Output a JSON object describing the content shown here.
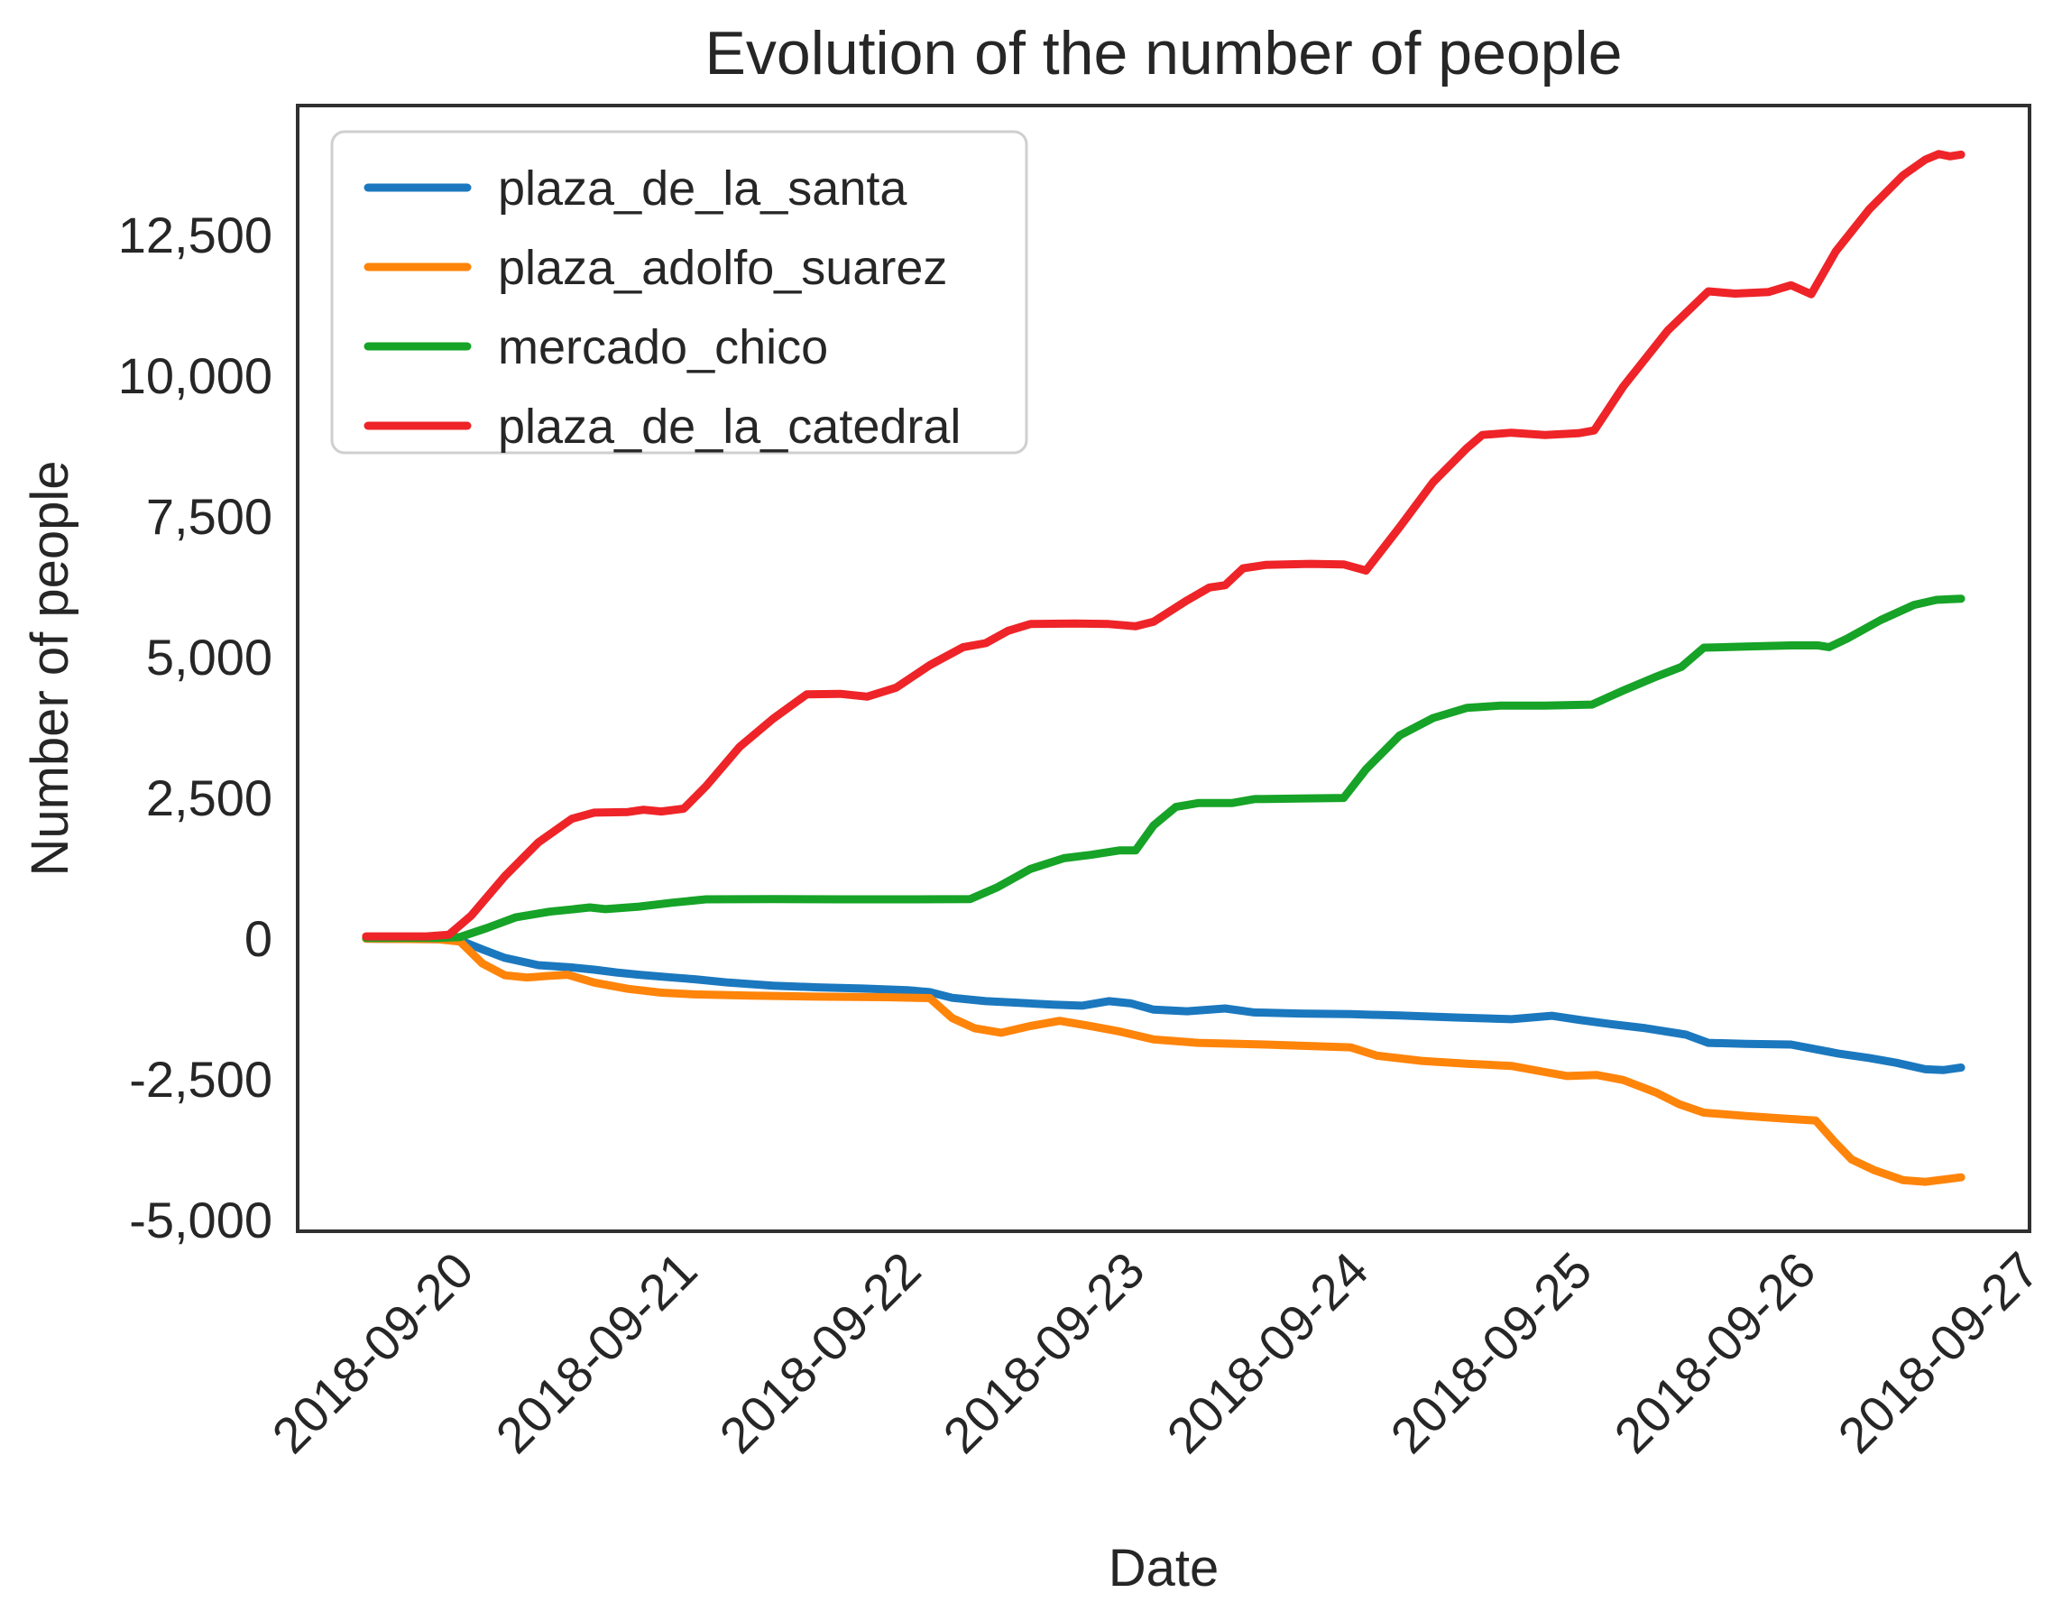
{
  "figure": {
    "title": "Evolution of the number of people",
    "xlabel": "Date",
    "ylabel": "Number of people"
  },
  "chart_data": {
    "type": "line",
    "title": "Evolution of the number of people",
    "xlabel": "Date",
    "ylabel": "Number of people",
    "grid": false,
    "legend_position": "upper left",
    "x_axis_unit": "days relative to 2018-09-20",
    "xlim_days": [
      -0.726,
      7.016
    ],
    "ylim": [
      -5208,
      14792
    ],
    "x_tick_days": [
      0,
      1,
      2,
      3,
      4,
      5,
      6,
      7
    ],
    "x_tick_labels": [
      "2018-09-20",
      "2018-09-21",
      "2018-09-22",
      "2018-09-23",
      "2018-09-24",
      "2018-09-25",
      "2018-09-26",
      "2018-09-27"
    ],
    "y_ticks": [
      -5000,
      -2500,
      0,
      2500,
      5000,
      7500,
      10000,
      12500
    ],
    "y_tick_labels": [
      "-5,000",
      "-2,500",
      "0",
      "2,500",
      "5,000",
      "7,500",
      "10,000",
      "12,500"
    ],
    "series": [
      {
        "name": "plaza_de_la_santa",
        "color": "#1b78be",
        "points": [
          [
            -0.42,
            -10
          ],
          [
            -0.1,
            -20
          ],
          [
            0.0,
            -40
          ],
          [
            0.1,
            -200
          ],
          [
            0.2,
            -350
          ],
          [
            0.35,
            -480
          ],
          [
            0.5,
            -520
          ],
          [
            0.6,
            -560
          ],
          [
            0.7,
            -610
          ],
          [
            0.8,
            -650
          ],
          [
            0.95,
            -700
          ],
          [
            1.05,
            -730
          ],
          [
            1.2,
            -790
          ],
          [
            1.4,
            -845
          ],
          [
            1.6,
            -875
          ],
          [
            1.8,
            -895
          ],
          [
            2.0,
            -925
          ],
          [
            2.1,
            -960
          ],
          [
            2.2,
            -1060
          ],
          [
            2.35,
            -1120
          ],
          [
            2.5,
            -1150
          ],
          [
            2.65,
            -1180
          ],
          [
            2.78,
            -1200
          ],
          [
            2.9,
            -1120
          ],
          [
            3.0,
            -1160
          ],
          [
            3.1,
            -1270
          ],
          [
            3.25,
            -1300
          ],
          [
            3.42,
            -1250
          ],
          [
            3.55,
            -1320
          ],
          [
            3.75,
            -1340
          ],
          [
            3.98,
            -1350
          ],
          [
            4.2,
            -1375
          ],
          [
            4.45,
            -1410
          ],
          [
            4.7,
            -1440
          ],
          [
            4.88,
            -1380
          ],
          [
            5.0,
            -1450
          ],
          [
            5.15,
            -1530
          ],
          [
            5.3,
            -1600
          ],
          [
            5.48,
            -1714
          ],
          [
            5.58,
            -1860
          ],
          [
            5.75,
            -1880
          ],
          [
            5.95,
            -1890
          ],
          [
            6.16,
            -2050
          ],
          [
            6.3,
            -2130
          ],
          [
            6.42,
            -2215
          ],
          [
            6.55,
            -2330
          ],
          [
            6.63,
            -2345
          ],
          [
            6.71,
            -2300
          ]
        ]
      },
      {
        "name": "plaza_adolfo_suarez",
        "color": "#ff840a",
        "points": [
          [
            -0.42,
            -10
          ],
          [
            -0.1,
            -20
          ],
          [
            0.0,
            -60
          ],
          [
            0.1,
            -450
          ],
          [
            0.2,
            -660
          ],
          [
            0.3,
            -700
          ],
          [
            0.4,
            -670
          ],
          [
            0.48,
            -650
          ],
          [
            0.6,
            -790
          ],
          [
            0.75,
            -900
          ],
          [
            0.9,
            -970
          ],
          [
            1.05,
            -1000
          ],
          [
            1.3,
            -1020
          ],
          [
            1.6,
            -1040
          ],
          [
            1.9,
            -1050
          ],
          [
            2.1,
            -1065
          ],
          [
            2.2,
            -1420
          ],
          [
            2.3,
            -1600
          ],
          [
            2.42,
            -1680
          ],
          [
            2.55,
            -1560
          ],
          [
            2.68,
            -1470
          ],
          [
            2.8,
            -1550
          ],
          [
            2.95,
            -1660
          ],
          [
            3.1,
            -1800
          ],
          [
            3.3,
            -1860
          ],
          [
            3.6,
            -1890
          ],
          [
            3.98,
            -1940
          ],
          [
            4.1,
            -2090
          ],
          [
            4.3,
            -2180
          ],
          [
            4.5,
            -2230
          ],
          [
            4.7,
            -2270
          ],
          [
            4.85,
            -2380
          ],
          [
            4.95,
            -2450
          ],
          [
            5.08,
            -2430
          ],
          [
            5.2,
            -2520
          ],
          [
            5.35,
            -2750
          ],
          [
            5.45,
            -2950
          ],
          [
            5.56,
            -3100
          ],
          [
            5.75,
            -3160
          ],
          [
            5.9,
            -3200
          ],
          [
            6.06,
            -3240
          ],
          [
            6.14,
            -3600
          ],
          [
            6.22,
            -3930
          ],
          [
            6.32,
            -4120
          ],
          [
            6.45,
            -4300
          ],
          [
            6.55,
            -4330
          ],
          [
            6.63,
            -4290
          ],
          [
            6.71,
            -4250
          ]
        ]
      },
      {
        "name": "mercado_chico",
        "color": "#16a327",
        "points": [
          [
            -0.42,
            5
          ],
          [
            -0.1,
            5
          ],
          [
            0.0,
            20
          ],
          [
            0.12,
            180
          ],
          [
            0.25,
            370
          ],
          [
            0.4,
            470
          ],
          [
            0.5,
            510
          ],
          [
            0.58,
            545
          ],
          [
            0.65,
            515
          ],
          [
            0.8,
            560
          ],
          [
            0.95,
            630
          ],
          [
            1.1,
            690
          ],
          [
            1.4,
            695
          ],
          [
            1.7,
            690
          ],
          [
            2.0,
            690
          ],
          [
            2.28,
            695
          ],
          [
            2.4,
            900
          ],
          [
            2.55,
            1230
          ],
          [
            2.7,
            1420
          ],
          [
            2.82,
            1480
          ],
          [
            2.95,
            1560
          ],
          [
            3.02,
            1560
          ],
          [
            3.1,
            2000
          ],
          [
            3.2,
            2330
          ],
          [
            3.3,
            2400
          ],
          [
            3.45,
            2400
          ],
          [
            3.55,
            2470
          ],
          [
            3.75,
            2480
          ],
          [
            3.95,
            2490
          ],
          [
            4.05,
            3000
          ],
          [
            4.2,
            3600
          ],
          [
            4.35,
            3910
          ],
          [
            4.5,
            4090
          ],
          [
            4.65,
            4130
          ],
          [
            4.85,
            4130
          ],
          [
            5.06,
            4150
          ],
          [
            5.2,
            4400
          ],
          [
            5.35,
            4650
          ],
          [
            5.46,
            4820
          ],
          [
            5.56,
            5160
          ],
          [
            5.75,
            5180
          ],
          [
            5.95,
            5200
          ],
          [
            6.07,
            5200
          ],
          [
            6.12,
            5170
          ],
          [
            6.2,
            5320
          ],
          [
            6.35,
            5650
          ],
          [
            6.5,
            5920
          ],
          [
            6.6,
            6010
          ],
          [
            6.71,
            6030
          ]
        ]
      },
      {
        "name": "plaza_de_la_catedral",
        "color": "#ee2428",
        "points": [
          [
            -0.42,
            30
          ],
          [
            -0.15,
            30
          ],
          [
            -0.05,
            60
          ],
          [
            0.05,
            400
          ],
          [
            0.2,
            1100
          ],
          [
            0.35,
            1700
          ],
          [
            0.5,
            2120
          ],
          [
            0.6,
            2230
          ],
          [
            0.75,
            2240
          ],
          [
            0.82,
            2280
          ],
          [
            0.9,
            2250
          ],
          [
            1.0,
            2300
          ],
          [
            1.1,
            2700
          ],
          [
            1.25,
            3400
          ],
          [
            1.4,
            3900
          ],
          [
            1.55,
            4330
          ],
          [
            1.7,
            4340
          ],
          [
            1.82,
            4290
          ],
          [
            1.95,
            4450
          ],
          [
            2.1,
            4850
          ],
          [
            2.25,
            5170
          ],
          [
            2.35,
            5240
          ],
          [
            2.45,
            5460
          ],
          [
            2.55,
            5580
          ],
          [
            2.75,
            5590
          ],
          [
            2.9,
            5580
          ],
          [
            3.02,
            5540
          ],
          [
            3.1,
            5620
          ],
          [
            3.25,
            6000
          ],
          [
            3.35,
            6230
          ],
          [
            3.42,
            6270
          ],
          [
            3.5,
            6570
          ],
          [
            3.6,
            6630
          ],
          [
            3.8,
            6650
          ],
          [
            3.95,
            6640
          ],
          [
            4.05,
            6530
          ],
          [
            4.2,
            7300
          ],
          [
            4.35,
            8100
          ],
          [
            4.5,
            8700
          ],
          [
            4.57,
            8940
          ],
          [
            4.7,
            8980
          ],
          [
            4.85,
            8940
          ],
          [
            5.0,
            8970
          ],
          [
            5.07,
            9020
          ],
          [
            5.2,
            9800
          ],
          [
            5.4,
            10800
          ],
          [
            5.58,
            11490
          ],
          [
            5.7,
            11450
          ],
          [
            5.85,
            11480
          ],
          [
            5.95,
            11600
          ],
          [
            6.04,
            11440
          ],
          [
            6.15,
            12200
          ],
          [
            6.3,
            12950
          ],
          [
            6.45,
            13550
          ],
          [
            6.55,
            13830
          ],
          [
            6.61,
            13930
          ],
          [
            6.66,
            13890
          ],
          [
            6.71,
            13920
          ]
        ]
      }
    ]
  }
}
